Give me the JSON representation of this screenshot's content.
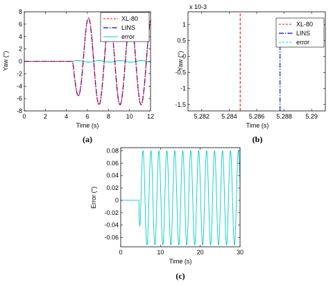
{
  "chart_data": [
    {
      "id": "a",
      "type": "line",
      "caption": "(a)",
      "xlabel": "Time (s)",
      "ylabel": "Yaw (°)",
      "xlim": [
        0,
        12
      ],
      "ylim": [
        -8,
        8
      ],
      "xticks": [
        "0",
        "2",
        "4",
        "6",
        "8",
        "10",
        "12"
      ],
      "yticks": [
        "-8",
        "-6",
        "-4",
        "-2",
        "0",
        "2",
        "4",
        "6",
        "8"
      ],
      "legend": "top-right",
      "grid": false,
      "signal": {
        "start_time": 4.6,
        "amplitude": 7.0,
        "period": 2.0,
        "peak_times": [
          5.8,
          7.8,
          9.8,
          11.7
        ],
        "trough_times": [
          4.9,
          6.8,
          8.8,
          10.8
        ]
      },
      "series": [
        {
          "name": "XL-80",
          "color": "#ff0000",
          "style": "dashed",
          "x": [
            0,
            4.6,
            4.9,
            5.3,
            5.8,
            6.3,
            6.8,
            7.3,
            7.8,
            8.3,
            8.8,
            9.3,
            9.8,
            10.3,
            10.8,
            11.3,
            11.7,
            12
          ],
          "y": [
            0,
            0,
            -4.5,
            0,
            7.0,
            0,
            -7.0,
            0,
            7.0,
            0,
            -7.0,
            0,
            7.0,
            0,
            -7.0,
            0,
            7.0,
            5.5
          ]
        },
        {
          "name": "LINS",
          "color": "#0000cc",
          "style": "dash-dot",
          "x": [
            0,
            4.6,
            4.9,
            5.3,
            5.8,
            6.3,
            6.8,
            7.3,
            7.8,
            8.3,
            8.8,
            9.3,
            9.8,
            10.3,
            10.8,
            11.3,
            11.7,
            12
          ],
          "y": [
            0,
            0,
            -4.5,
            0,
            7.0,
            0,
            -7.0,
            0,
            7.0,
            0,
            -7.0,
            0,
            7.0,
            0,
            -7.0,
            0,
            7.0,
            5.5
          ]
        },
        {
          "name": "error",
          "color": "#00cccc",
          "style": "solid",
          "x": [
            0,
            12
          ],
          "y": [
            0,
            0
          ]
        }
      ]
    },
    {
      "id": "b",
      "type": "line",
      "caption": "(b)",
      "xlabel": "Time (s)",
      "ylabel": "Yaw (°)",
      "xlim": [
        5.281,
        5.291
      ],
      "ylim": [
        -0.0017,
        0.0014
      ],
      "xticks": [
        "5.282",
        "5.284",
        "5.286",
        "5.288",
        "5.29"
      ],
      "yticks": [
        "1",
        "0.5",
        "0",
        "-0.5",
        "-1",
        "-1.5"
      ],
      "exponent_label": "x 10-3",
      "legend": "top-right",
      "grid": false,
      "series": [
        {
          "name": "XL-80",
          "color": "#ff0000",
          "style": "dashed",
          "x": [
            5.2848,
            5.2848
          ],
          "y": [
            -0.0017,
            0.0014
          ]
        },
        {
          "name": "LINS",
          "color": "#0000cc",
          "style": "dash-dot",
          "x": [
            5.2877,
            5.2877
          ],
          "y": [
            -0.0017,
            0.0003
          ]
        },
        {
          "name": "error",
          "color": "#00cccc",
          "style": "dashed",
          "x": [],
          "y": []
        }
      ]
    },
    {
      "id": "c",
      "type": "line",
      "caption": "(c)",
      "xlabel": "Time (s)",
      "ylabel": "Error (°)",
      "xlim": [
        0,
        30
      ],
      "ylim": [
        -0.075,
        0.085
      ],
      "xticks": [
        "0",
        "10",
        "20",
        "30"
      ],
      "yticks": [
        "0.08",
        "0.06",
        "0.04",
        "0.02",
        "0",
        "-0.02",
        "-0.04",
        "-0.06"
      ],
      "grid": false,
      "series": [
        {
          "name": "error",
          "color": "#00cccc",
          "style": "solid",
          "onset_time": 4.6,
          "amplitude_max": 0.08,
          "amplitude_min": -0.072,
          "period": 2.0,
          "pre_onset_value": 0.0
        }
      ]
    }
  ]
}
